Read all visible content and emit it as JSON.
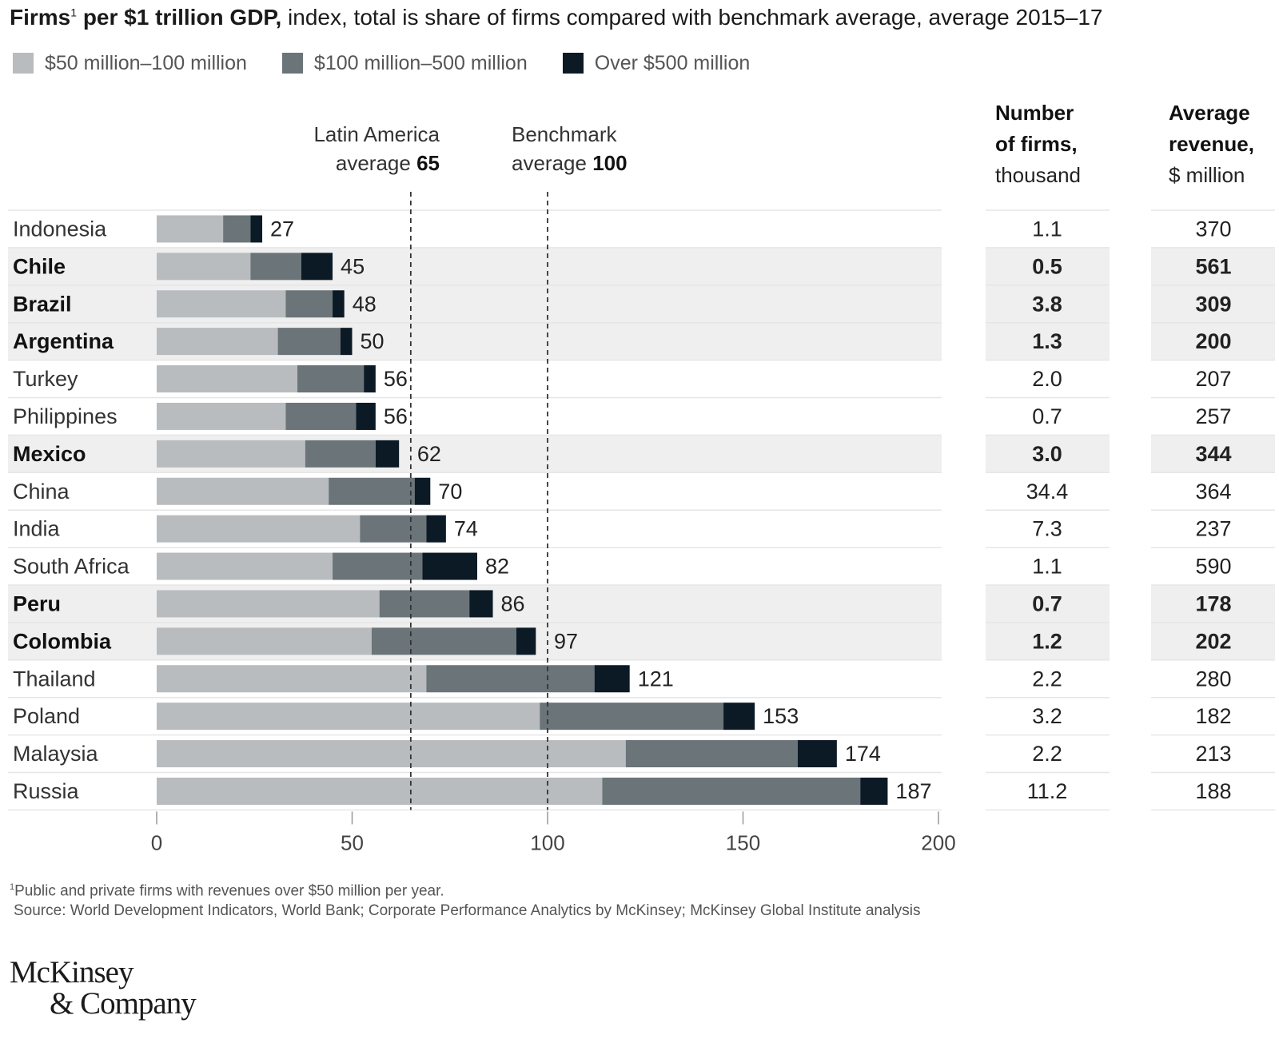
{
  "title": {
    "bold": "Firms",
    "footnote_mark": "1",
    "bold_rest": " per $1 trillion GDP,",
    "rest": " index, total is share of firms compared with benchmark average, average 2015–17"
  },
  "legend": [
    {
      "label": "$50 million–100 million",
      "color": "#b8bcbf"
    },
    {
      "label": "$100 million–500 million",
      "color": "#6a7479"
    },
    {
      "label": "Over $500 million",
      "color": "#0c1a26"
    }
  ],
  "reference_lines": {
    "latam": {
      "line1": "Latin America",
      "line2": "average ",
      "value_text": "65",
      "value": 65
    },
    "benchmark": {
      "line1": "Benchmark",
      "line2": "average ",
      "value_text": "100",
      "value": 100
    }
  },
  "columns": {
    "firms": {
      "line1": "Number",
      "line2": "of firms,",
      "line3": "thousand"
    },
    "revenue": {
      "line1": "Average",
      "line2": "revenue,",
      "line3": "$ million"
    }
  },
  "chart_data": {
    "type": "bar",
    "orientation": "horizontal",
    "stacked": true,
    "title": "Firms per $1 trillion GDP, index, total is share of firms compared with benchmark average, average 2015–17",
    "categories": [
      "Indonesia",
      "Chile",
      "Brazil",
      "Argentina",
      "Turkey",
      "Philippines",
      "Mexico",
      "China",
      "India",
      "South Africa",
      "Peru",
      "Colombia",
      "Thailand",
      "Poland",
      "Malaysia",
      "Russia"
    ],
    "highlighted": [
      false,
      true,
      true,
      true,
      false,
      false,
      true,
      false,
      false,
      false,
      true,
      true,
      false,
      false,
      false,
      false
    ],
    "series": [
      {
        "name": "$50 million–100 million",
        "color": "#b8bcbf",
        "values": [
          17,
          24,
          33,
          31,
          36,
          33,
          38,
          44,
          52,
          45,
          57,
          55,
          69,
          98,
          120,
          114
        ]
      },
      {
        "name": "$100 million–500 million",
        "color": "#6a7479",
        "values": [
          7,
          13,
          12,
          16,
          17,
          18,
          18,
          22,
          17,
          23,
          23,
          37,
          43,
          47,
          44,
          66
        ]
      },
      {
        "name": "Over $500 million",
        "color": "#0c1a26",
        "values": [
          3,
          8,
          3,
          3,
          3,
          5,
          6,
          4,
          5,
          14,
          6,
          5,
          9,
          8,
          10,
          7
        ]
      }
    ],
    "totals": [
      27,
      45,
      48,
      50,
      56,
      56,
      62,
      70,
      74,
      82,
      86,
      97,
      121,
      153,
      174,
      187
    ],
    "number_of_firms_thousand": [
      "1.1",
      "0.5",
      "3.8",
      "1.3",
      "2.0",
      "0.7",
      "3.0",
      "34.4",
      "7.3",
      "1.1",
      "0.7",
      "1.2",
      "2.2",
      "3.2",
      "2.2",
      "11.2"
    ],
    "average_revenue_million": [
      "370",
      "561",
      "309",
      "200",
      "207",
      "257",
      "344",
      "364",
      "237",
      "590",
      "178",
      "202",
      "280",
      "182",
      "213",
      "188"
    ],
    "xlim": [
      0,
      200
    ],
    "xticks": [
      0,
      50,
      100,
      150,
      200
    ],
    "xlabel": "",
    "ylabel": "",
    "reference_lines": [
      {
        "label": "Latin America average",
        "value": 65
      },
      {
        "label": "Benchmark average",
        "value": 100
      }
    ],
    "legend_position": "top-left"
  },
  "footnote": {
    "mark": "1",
    "text": "Public and private firms with revenues over $50 million per year.",
    "source": "Source: World Development Indicators, World Bank; Corporate Performance Analytics by McKinsey; McKinsey Global Institute analysis"
  },
  "logo": {
    "line1": "McKinsey",
    "line2": "& Company"
  }
}
